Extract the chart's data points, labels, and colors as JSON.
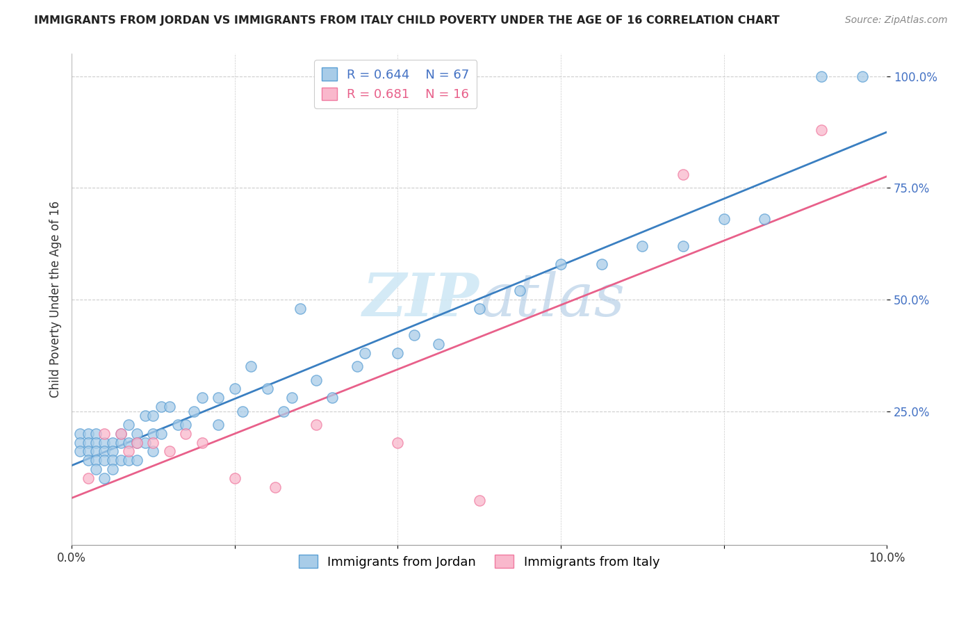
{
  "title": "IMMIGRANTS FROM JORDAN VS IMMIGRANTS FROM ITALY CHILD POVERTY UNDER THE AGE OF 16 CORRELATION CHART",
  "source": "Source: ZipAtlas.com",
  "ylabel": "Child Poverty Under the Age of 16",
  "xmin": 0.0,
  "xmax": 0.1,
  "ymin": -0.05,
  "ymax": 1.05,
  "jordan_R": 0.644,
  "jordan_N": 67,
  "italy_R": 0.681,
  "italy_N": 16,
  "jordan_color": "#a8cce8",
  "italy_color": "#f9b8cc",
  "jordan_edge_color": "#5a9fd4",
  "italy_edge_color": "#f07aa0",
  "jordan_line_color": "#3a7fc1",
  "italy_line_color": "#e8608a",
  "watermark_color": "#d0e8f5",
  "jordan_x": [
    0.001,
    0.001,
    0.001,
    0.002,
    0.002,
    0.002,
    0.002,
    0.003,
    0.003,
    0.003,
    0.003,
    0.003,
    0.004,
    0.004,
    0.004,
    0.004,
    0.005,
    0.005,
    0.005,
    0.005,
    0.006,
    0.006,
    0.006,
    0.007,
    0.007,
    0.007,
    0.008,
    0.008,
    0.008,
    0.009,
    0.009,
    0.01,
    0.01,
    0.01,
    0.011,
    0.011,
    0.012,
    0.013,
    0.014,
    0.015,
    0.016,
    0.018,
    0.018,
    0.02,
    0.021,
    0.022,
    0.024,
    0.026,
    0.027,
    0.028,
    0.03,
    0.032,
    0.035,
    0.036,
    0.04,
    0.042,
    0.045,
    0.05,
    0.055,
    0.06,
    0.065,
    0.07,
    0.075,
    0.08,
    0.085,
    0.092,
    0.097
  ],
  "jordan_y": [
    0.2,
    0.18,
    0.16,
    0.2,
    0.18,
    0.16,
    0.14,
    0.2,
    0.18,
    0.16,
    0.14,
    0.12,
    0.18,
    0.16,
    0.14,
    0.1,
    0.18,
    0.16,
    0.14,
    0.12,
    0.2,
    0.18,
    0.14,
    0.22,
    0.18,
    0.14,
    0.2,
    0.18,
    0.14,
    0.24,
    0.18,
    0.24,
    0.2,
    0.16,
    0.26,
    0.2,
    0.26,
    0.22,
    0.22,
    0.25,
    0.28,
    0.28,
    0.22,
    0.3,
    0.25,
    0.35,
    0.3,
    0.25,
    0.28,
    0.48,
    0.32,
    0.28,
    0.35,
    0.38,
    0.38,
    0.42,
    0.4,
    0.48,
    0.52,
    0.58,
    0.58,
    0.62,
    0.62,
    0.68,
    0.68,
    1.0,
    1.0
  ],
  "italy_x": [
    0.002,
    0.004,
    0.006,
    0.007,
    0.008,
    0.01,
    0.012,
    0.014,
    0.016,
    0.02,
    0.025,
    0.03,
    0.04,
    0.05,
    0.075,
    0.092
  ],
  "italy_y": [
    0.1,
    0.2,
    0.2,
    0.16,
    0.18,
    0.18,
    0.16,
    0.2,
    0.18,
    0.1,
    0.08,
    0.22,
    0.18,
    0.05,
    0.78,
    0.88
  ],
  "xtick_values": [
    0.0,
    0.02,
    0.04,
    0.06,
    0.08,
    0.1
  ],
  "xtick_labels_outer": [
    "0.0%",
    "10.0%"
  ],
  "ytick_values": [
    0.25,
    0.5,
    0.75,
    1.0
  ],
  "ytick_labels": [
    "25.0%",
    "50.0%",
    "75.0%",
    "100.0%"
  ],
  "grid_color": "#cccccc"
}
